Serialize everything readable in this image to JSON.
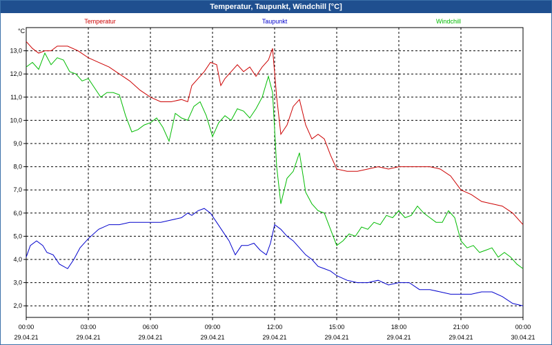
{
  "window": {
    "title": "Temperatur, Taupunkt, Windchill [°C]"
  },
  "chart_data": {
    "type": "line",
    "title": "Temperatur, Taupunkt, Windchill [°C]",
    "ylabel": "°C",
    "xlabel": "",
    "ylim": [
      1.0,
      14.0
    ],
    "xlim": [
      0,
      24
    ],
    "grid": true,
    "y_ticks": [
      "13,0",
      "12,0",
      "11,0",
      "10,0",
      "9,0",
      "8,0",
      "7,0",
      "6,0",
      "5,0",
      "4,0",
      "3,0",
      "2,0"
    ],
    "y_tick_values": [
      13,
      12,
      11,
      10,
      9,
      8,
      7,
      6,
      5,
      4,
      3,
      2
    ],
    "x_ticks": [
      {
        "time": "00:00",
        "date": "29.04.21",
        "h": 0
      },
      {
        "time": "03:00",
        "date": "29.04.21",
        "h": 3
      },
      {
        "time": "06:00",
        "date": "29.04.21",
        "h": 6
      },
      {
        "time": "09:00",
        "date": "29.04.21",
        "h": 9
      },
      {
        "time": "12:00",
        "date": "29.04.21",
        "h": 12
      },
      {
        "time": "15:00",
        "date": "29.04.21",
        "h": 15
      },
      {
        "time": "18:00",
        "date": "29.04.21",
        "h": 18
      },
      {
        "time": "21:00",
        "date": "29.04.21",
        "h": 21
      },
      {
        "time": "00:00",
        "date": "30.04.21",
        "h": 24
      }
    ],
    "series": [
      {
        "name": "Temperatur",
        "color": "#cc0000",
        "x": [
          0,
          0.3,
          0.6,
          0.9,
          1.2,
          1.5,
          2.0,
          2.5,
          3.0,
          3.5,
          4.0,
          4.5,
          5.0,
          5.5,
          6.0,
          6.5,
          7.0,
          7.5,
          7.8,
          8.0,
          8.3,
          8.6,
          8.9,
          9.2,
          9.4,
          9.6,
          9.9,
          10.2,
          10.5,
          10.8,
          11.1,
          11.4,
          11.7,
          11.9,
          12.1,
          12.3,
          12.6,
          12.9,
          13.2,
          13.5,
          13.8,
          14.1,
          14.4,
          14.7,
          15.0,
          15.5,
          16.0,
          16.5,
          17.0,
          17.5,
          18.0,
          18.5,
          19.0,
          19.5,
          20.0,
          20.5,
          21.0,
          21.5,
          22.0,
          22.5,
          23.0,
          23.5,
          24.0
        ],
        "values": [
          13.4,
          13.1,
          12.9,
          13.0,
          13.0,
          13.2,
          13.2,
          13.0,
          12.7,
          12.5,
          12.3,
          12.0,
          11.7,
          11.3,
          11.0,
          10.8,
          10.8,
          10.9,
          10.8,
          11.5,
          11.8,
          12.1,
          12.5,
          12.4,
          11.5,
          11.8,
          12.1,
          12.4,
          12.1,
          12.3,
          11.9,
          12.3,
          12.6,
          13.1,
          11.0,
          9.4,
          9.8,
          10.6,
          10.9,
          9.8,
          9.2,
          9.4,
          9.2,
          8.5,
          7.9,
          7.8,
          7.8,
          7.9,
          8.0,
          7.9,
          8.0,
          8.0,
          8.0,
          8.0,
          7.9,
          7.6,
          7.0,
          6.8,
          6.5,
          6.4,
          6.3,
          6.0,
          5.5
        ]
      },
      {
        "name": "Taupunkt",
        "color": "#0000cc",
        "x": [
          0,
          0.2,
          0.5,
          0.8,
          1.0,
          1.3,
          1.6,
          2.0,
          2.3,
          2.6,
          3.0,
          3.5,
          4.0,
          4.5,
          5.0,
          5.5,
          6.0,
          6.5,
          7.0,
          7.5,
          7.8,
          8.0,
          8.3,
          8.6,
          8.9,
          9.2,
          9.5,
          9.8,
          10.1,
          10.4,
          10.7,
          11.0,
          11.3,
          11.6,
          11.8,
          12.0,
          12.3,
          12.6,
          12.9,
          13.2,
          13.5,
          13.8,
          14.1,
          14.4,
          14.7,
          15.0,
          15.5,
          16.0,
          16.5,
          17.0,
          17.5,
          18.0,
          18.5,
          19.0,
          19.5,
          20.0,
          20.5,
          21.0,
          21.5,
          22.0,
          22.5,
          23.0,
          23.5,
          24.0
        ],
        "values": [
          4.1,
          4.6,
          4.8,
          4.6,
          4.3,
          4.2,
          3.8,
          3.6,
          4.0,
          4.5,
          4.9,
          5.3,
          5.5,
          5.5,
          5.6,
          5.6,
          5.6,
          5.6,
          5.7,
          5.8,
          6.0,
          5.9,
          6.1,
          6.2,
          6.0,
          5.6,
          5.2,
          4.8,
          4.2,
          4.6,
          4.6,
          4.7,
          4.4,
          4.2,
          4.7,
          5.5,
          5.3,
          5.0,
          4.8,
          4.5,
          4.2,
          4.0,
          3.7,
          3.6,
          3.5,
          3.3,
          3.1,
          3.0,
          3.0,
          3.1,
          2.9,
          3.0,
          3.0,
          2.7,
          2.7,
          2.6,
          2.5,
          2.5,
          2.5,
          2.6,
          2.6,
          2.4,
          2.1,
          2.0
        ]
      },
      {
        "name": "Windchill",
        "color": "#00bb00",
        "x": [
          0,
          0.3,
          0.6,
          0.9,
          1.2,
          1.5,
          1.8,
          2.1,
          2.4,
          2.7,
          3.0,
          3.3,
          3.6,
          3.9,
          4.2,
          4.5,
          4.8,
          5.1,
          5.4,
          5.7,
          6.0,
          6.3,
          6.6,
          6.9,
          7.2,
          7.5,
          7.8,
          8.1,
          8.4,
          8.7,
          9.0,
          9.3,
          9.6,
          9.9,
          10.2,
          10.5,
          10.8,
          11.1,
          11.4,
          11.7,
          11.9,
          12.1,
          12.3,
          12.6,
          12.9,
          13.2,
          13.5,
          13.8,
          14.1,
          14.4,
          14.7,
          15.0,
          15.3,
          15.6,
          15.9,
          16.2,
          16.5,
          16.8,
          17.1,
          17.4,
          17.7,
          18.0,
          18.3,
          18.6,
          18.9,
          19.2,
          19.5,
          19.8,
          20.1,
          20.4,
          20.7,
          21.0,
          21.3,
          21.6,
          21.9,
          22.2,
          22.5,
          22.8,
          23.1,
          23.4,
          23.7,
          24.0
        ],
        "values": [
          12.3,
          12.5,
          12.2,
          12.9,
          12.4,
          12.7,
          12.6,
          12.1,
          12.0,
          11.7,
          11.8,
          11.4,
          11.0,
          11.2,
          11.2,
          11.1,
          10.2,
          9.5,
          9.6,
          9.8,
          9.9,
          10.1,
          9.7,
          9.1,
          10.3,
          10.1,
          10.0,
          10.6,
          10.8,
          10.2,
          9.3,
          9.9,
          10.2,
          10.0,
          10.5,
          10.4,
          10.1,
          10.5,
          11.0,
          11.9,
          11.2,
          8.0,
          6.4,
          7.5,
          7.8,
          8.6,
          6.9,
          6.4,
          6.1,
          6.0,
          5.3,
          4.6,
          4.8,
          5.1,
          5.0,
          5.4,
          5.3,
          5.6,
          5.5,
          5.9,
          5.8,
          6.1,
          5.8,
          5.9,
          6.3,
          6.0,
          5.8,
          5.6,
          5.6,
          6.1,
          5.8,
          4.8,
          4.5,
          4.6,
          4.3,
          4.4,
          4.5,
          4.1,
          4.3,
          4.1,
          3.8,
          3.6
        ]
      }
    ]
  }
}
